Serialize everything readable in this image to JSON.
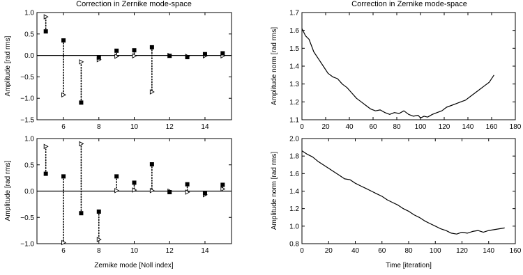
{
  "chart_data": [
    {
      "type": "scatter",
      "title": "Correction in Zernike mode-space",
      "xlabel": "",
      "ylabel": "Amplitude [rad rms]",
      "xlim": [
        4.5,
        15.5
      ],
      "ylim": [
        -1.5,
        1.0
      ],
      "xticks": [
        6,
        8,
        10,
        12,
        14
      ],
      "yticks": [
        1.0,
        0.5,
        0.0,
        -0.5,
        -1.0,
        -1.5
      ],
      "ytick_labels": [
        "1.0",
        "0.5",
        "0.0",
        "−0.5",
        "−1.0",
        "−1.5"
      ],
      "zero_line": true,
      "grid": false,
      "x": [
        5,
        6,
        7,
        8,
        9,
        10,
        11,
        12,
        13,
        14,
        15
      ],
      "series": [
        {
          "marker": "filled-square",
          "values": [
            0.56,
            0.35,
            -1.1,
            -0.05,
            0.11,
            0.12,
            0.19,
            -0.01,
            -0.04,
            0.03,
            0.05
          ]
        },
        {
          "marker": "open-triangle-right",
          "values": [
            0.9,
            -0.92,
            -0.15,
            -0.1,
            -0.02,
            -0.01,
            -0.85,
            0.0,
            -0.02,
            -0.01,
            -0.01
          ]
        }
      ]
    },
    {
      "type": "line",
      "title": "Correction in Zernike mode-space",
      "xlabel": "",
      "ylabel": "Amplitude norm [rad rms]",
      "xlim": [
        0,
        180
      ],
      "ylim": [
        1.1,
        1.7
      ],
      "xticks": [
        0,
        20,
        40,
        60,
        80,
        100,
        120,
        140,
        160,
        180
      ],
      "yticks": [
        1.1,
        1.2,
        1.3,
        1.4,
        1.5,
        1.6,
        1.7
      ],
      "ytick_labels": [
        "1.1",
        "1.2",
        "1.3",
        "1.4",
        "1.5",
        "1.6",
        "1.7"
      ],
      "grid": false,
      "x": [
        0,
        3,
        6,
        10,
        14,
        18,
        22,
        26,
        30,
        34,
        38,
        42,
        46,
        50,
        54,
        58,
        62,
        66,
        70,
        74,
        78,
        82,
        86,
        90,
        94,
        98,
        100,
        103,
        106,
        110,
        114,
        118,
        122,
        126,
        130,
        134,
        138,
        142,
        146,
        150,
        154,
        158,
        162
      ],
      "values": [
        1.61,
        1.57,
        1.55,
        1.48,
        1.44,
        1.4,
        1.36,
        1.34,
        1.33,
        1.3,
        1.28,
        1.25,
        1.22,
        1.2,
        1.18,
        1.16,
        1.15,
        1.155,
        1.14,
        1.13,
        1.14,
        1.135,
        1.15,
        1.13,
        1.12,
        1.125,
        1.11,
        1.12,
        1.115,
        1.13,
        1.14,
        1.15,
        1.17,
        1.18,
        1.19,
        1.2,
        1.21,
        1.23,
        1.25,
        1.27,
        1.29,
        1.31,
        1.35
      ]
    },
    {
      "type": "scatter",
      "title": "",
      "xlabel": "Zernike mode [Noll index]",
      "ylabel": "Amplitude [rad rms]",
      "xlim": [
        4.5,
        15.5
      ],
      "ylim": [
        -1.0,
        1.0
      ],
      "xticks": [
        6,
        8,
        10,
        12,
        14
      ],
      "yticks": [
        1.0,
        0.5,
        0.0,
        -0.5,
        -1.0
      ],
      "ytick_labels": [
        "1.0",
        "0.5",
        "0.0",
        "−0.5",
        "−1.0"
      ],
      "zero_line": true,
      "grid": false,
      "x": [
        5,
        6,
        7,
        8,
        9,
        10,
        11,
        12,
        13,
        14,
        15
      ],
      "series": [
        {
          "marker": "filled-square",
          "values": [
            0.33,
            0.28,
            -0.42,
            -0.39,
            0.28,
            0.16,
            0.51,
            -0.02,
            0.13,
            -0.04,
            0.12
          ]
        },
        {
          "marker": "open-triangle-right",
          "values": [
            0.85,
            -0.98,
            0.9,
            -0.92,
            0.01,
            0.02,
            0.01,
            0.0,
            -0.02,
            -0.07,
            0.04
          ]
        }
      ]
    },
    {
      "type": "line",
      "title": "",
      "xlabel": "Time [iteration]",
      "ylabel": "Amplitude norm [rad rms]",
      "xlim": [
        0,
        160
      ],
      "ylim": [
        0.8,
        2.0
      ],
      "xticks": [
        0,
        20,
        40,
        60,
        80,
        100,
        120,
        140,
        160
      ],
      "yticks": [
        0.8,
        1.0,
        1.2,
        1.4,
        1.6,
        1.8,
        2.0
      ],
      "ytick_labels": [
        "0.8",
        "1.0",
        "1.2",
        "1.4",
        "1.6",
        "1.8",
        "2.0"
      ],
      "grid": false,
      "x": [
        0,
        4,
        8,
        12,
        16,
        20,
        24,
        28,
        32,
        36,
        40,
        44,
        48,
        52,
        56,
        60,
        64,
        68,
        72,
        76,
        80,
        84,
        88,
        92,
        96,
        100,
        104,
        108,
        112,
        116,
        120,
        124,
        128,
        132,
        136,
        140,
        144,
        148,
        152
      ],
      "values": [
        1.86,
        1.82,
        1.79,
        1.74,
        1.7,
        1.66,
        1.62,
        1.58,
        1.54,
        1.53,
        1.49,
        1.46,
        1.43,
        1.4,
        1.37,
        1.34,
        1.3,
        1.27,
        1.24,
        1.2,
        1.17,
        1.13,
        1.1,
        1.06,
        1.03,
        1.0,
        0.97,
        0.95,
        0.92,
        0.91,
        0.93,
        0.92,
        0.94,
        0.95,
        0.93,
        0.95,
        0.96,
        0.97,
        0.98
      ]
    }
  ]
}
